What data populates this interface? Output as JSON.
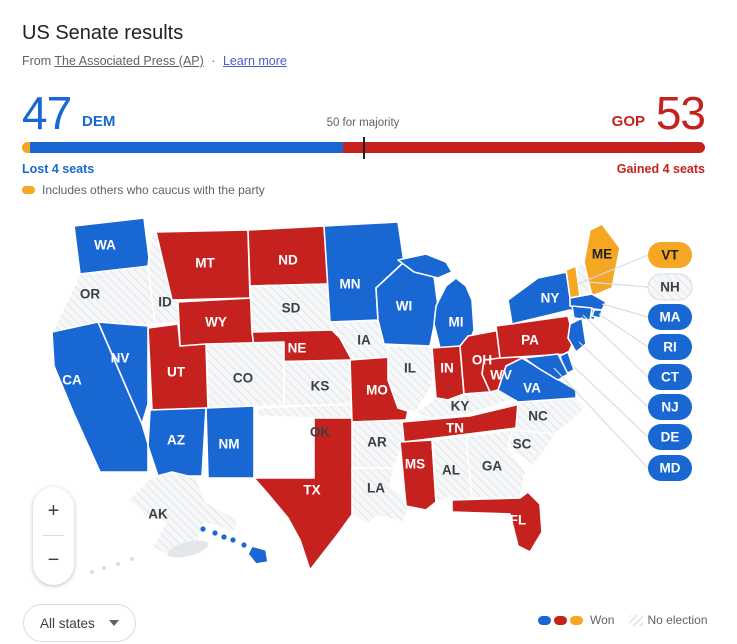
{
  "header": {
    "title": "US Senate results",
    "source_prefix": "From",
    "source_link": "The Associated Press (AP)",
    "separator": "·",
    "learn_more": "Learn more"
  },
  "scoreboard": {
    "dem_seats": "47",
    "dem_label": "DEM",
    "gop_label": "GOP",
    "gop_seats": "53",
    "dem_pct": 47,
    "gop_pct": 53,
    "majority_label": "50 for majority",
    "dem_change": "Lost 4 seats",
    "gop_change": "Gained 4 seats",
    "caucus_note": "Includes others who caucus with the party"
  },
  "colors": {
    "dem": "#1967d2",
    "gop": "#c5221f",
    "other": "#f5a623"
  },
  "map": {
    "states": [
      {
        "code": "WA",
        "party": "dem"
      },
      {
        "code": "OR",
        "party": "none"
      },
      {
        "code": "ID",
        "party": "none"
      },
      {
        "code": "MT",
        "party": "gop"
      },
      {
        "code": "WY",
        "party": "gop"
      },
      {
        "code": "ND",
        "party": "gop"
      },
      {
        "code": "SD",
        "party": "none"
      },
      {
        "code": "NE",
        "party": "gop"
      },
      {
        "code": "KS",
        "party": "none"
      },
      {
        "code": "CO",
        "party": "none"
      },
      {
        "code": "UT",
        "party": "gop"
      },
      {
        "code": "NV",
        "party": "dem"
      },
      {
        "code": "CA",
        "party": "dem"
      },
      {
        "code": "AZ",
        "party": "dem"
      },
      {
        "code": "NM",
        "party": "dem"
      },
      {
        "code": "OK",
        "party": "none"
      },
      {
        "code": "TX",
        "party": "gop"
      },
      {
        "code": "MN",
        "party": "dem"
      },
      {
        "code": "IA",
        "party": "none"
      },
      {
        "code": "MO",
        "party": "gop"
      },
      {
        "code": "AR",
        "party": "none"
      },
      {
        "code": "LA",
        "party": "none"
      },
      {
        "code": "WI",
        "party": "dem"
      },
      {
        "code": "IL",
        "party": "none"
      },
      {
        "code": "MI",
        "party": "dem"
      },
      {
        "code": "IN",
        "party": "gop"
      },
      {
        "code": "OH",
        "party": "gop"
      },
      {
        "code": "KY",
        "party": "none"
      },
      {
        "code": "TN",
        "party": "gop"
      },
      {
        "code": "MS",
        "party": "gop"
      },
      {
        "code": "AL",
        "party": "none"
      },
      {
        "code": "GA",
        "party": "none"
      },
      {
        "code": "FL",
        "party": "gop"
      },
      {
        "code": "SC",
        "party": "none"
      },
      {
        "code": "NC",
        "party": "none"
      },
      {
        "code": "VA",
        "party": "dem"
      },
      {
        "code": "WV",
        "party": "gop"
      },
      {
        "code": "PA",
        "party": "gop"
      },
      {
        "code": "NY",
        "party": "dem"
      },
      {
        "code": "VT",
        "party": "other"
      },
      {
        "code": "NH",
        "party": "none"
      },
      {
        "code": "ME",
        "party": "other"
      },
      {
        "code": "MA",
        "party": "dem"
      },
      {
        "code": "RI",
        "party": "dem"
      },
      {
        "code": "CT",
        "party": "dem"
      },
      {
        "code": "NJ",
        "party": "dem"
      },
      {
        "code": "DE",
        "party": "dem"
      },
      {
        "code": "MD",
        "party": "dem"
      },
      {
        "code": "AK",
        "party": "none"
      },
      {
        "code": "HI",
        "party": "dem"
      }
    ],
    "pills": [
      {
        "code": "VT",
        "party": "other"
      },
      {
        "code": "NH",
        "party": "none"
      },
      {
        "code": "MA",
        "party": "dem"
      },
      {
        "code": "RI",
        "party": "dem"
      },
      {
        "code": "CT",
        "party": "dem"
      },
      {
        "code": "NJ",
        "party": "dem"
      },
      {
        "code": "DE",
        "party": "dem"
      },
      {
        "code": "MD",
        "party": "dem"
      }
    ]
  },
  "controls": {
    "zoom_in": "+",
    "zoom_out": "−",
    "filter_label": "All states"
  },
  "legend": {
    "won_label": "Won",
    "no_election_label": "No election"
  }
}
